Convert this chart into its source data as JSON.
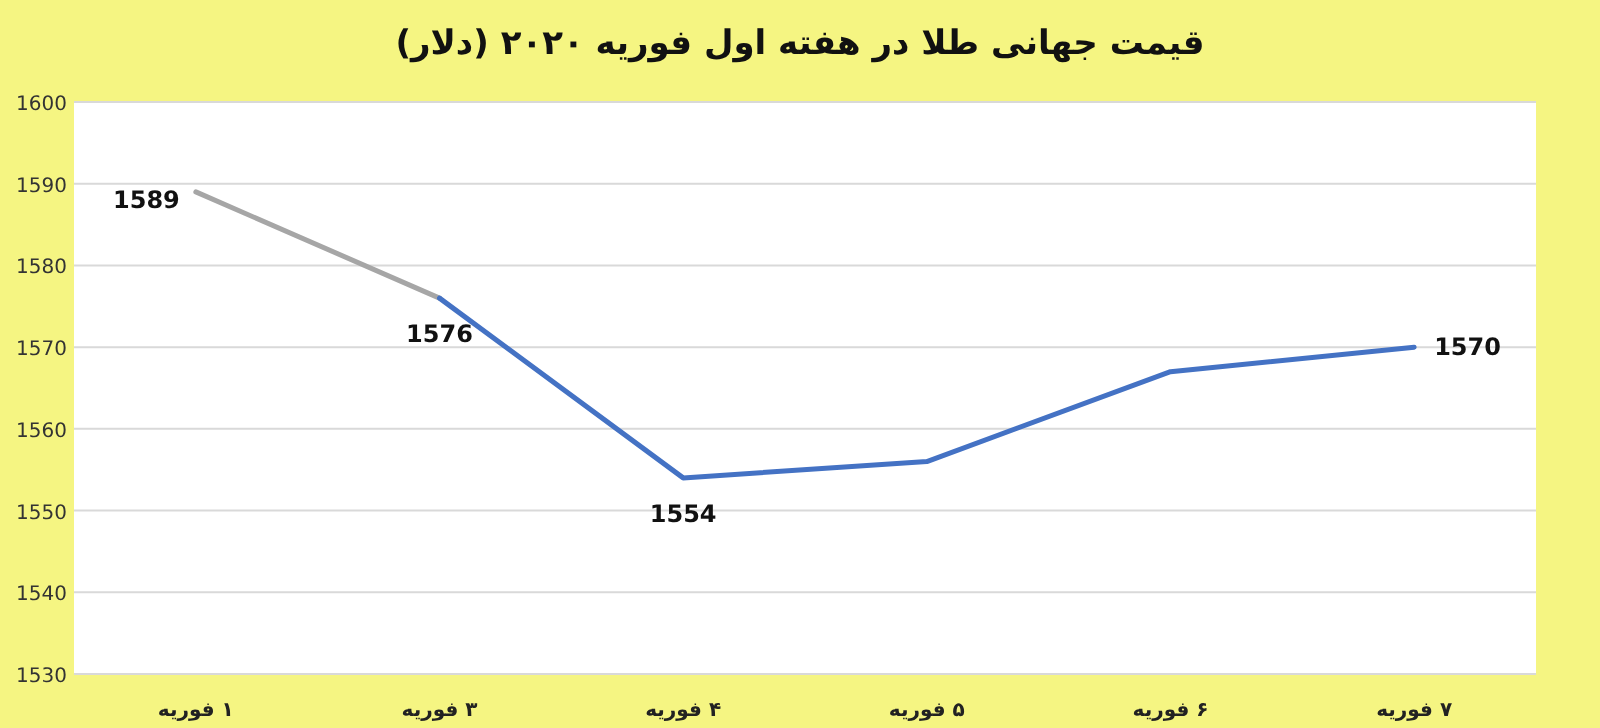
{
  "chart_data": {
    "type": "line",
    "title": "قیمت جهانی طلا در هفته اول فوریه ۲۰۲۰ (دلار)",
    "categories": [
      "۱ فوریه",
      "۳ فوریه",
      "۴ فوریه",
      "۵ فوریه",
      "۶ فوریه",
      "۷ فوریه"
    ],
    "series": [
      {
        "color": "#a6a6a6",
        "values": [
          1589,
          1576,
          null,
          null,
          null,
          null
        ],
        "value_labels": [
          "1589",
          null,
          null,
          null,
          null,
          null
        ]
      },
      {
        "color": "#4472c4",
        "values": [
          null,
          1576,
          1554,
          1556,
          1567,
          1570
        ],
        "value_labels": [
          null,
          "1576",
          "1554",
          null,
          null,
          "1570"
        ]
      }
    ],
    "ylim": [
      1530,
      1600
    ],
    "yticks": [
      1530,
      1540,
      1550,
      1560,
      1570,
      1580,
      1590,
      1600
    ],
    "grid": "y",
    "marker": "none",
    "line_style": "solid"
  }
}
